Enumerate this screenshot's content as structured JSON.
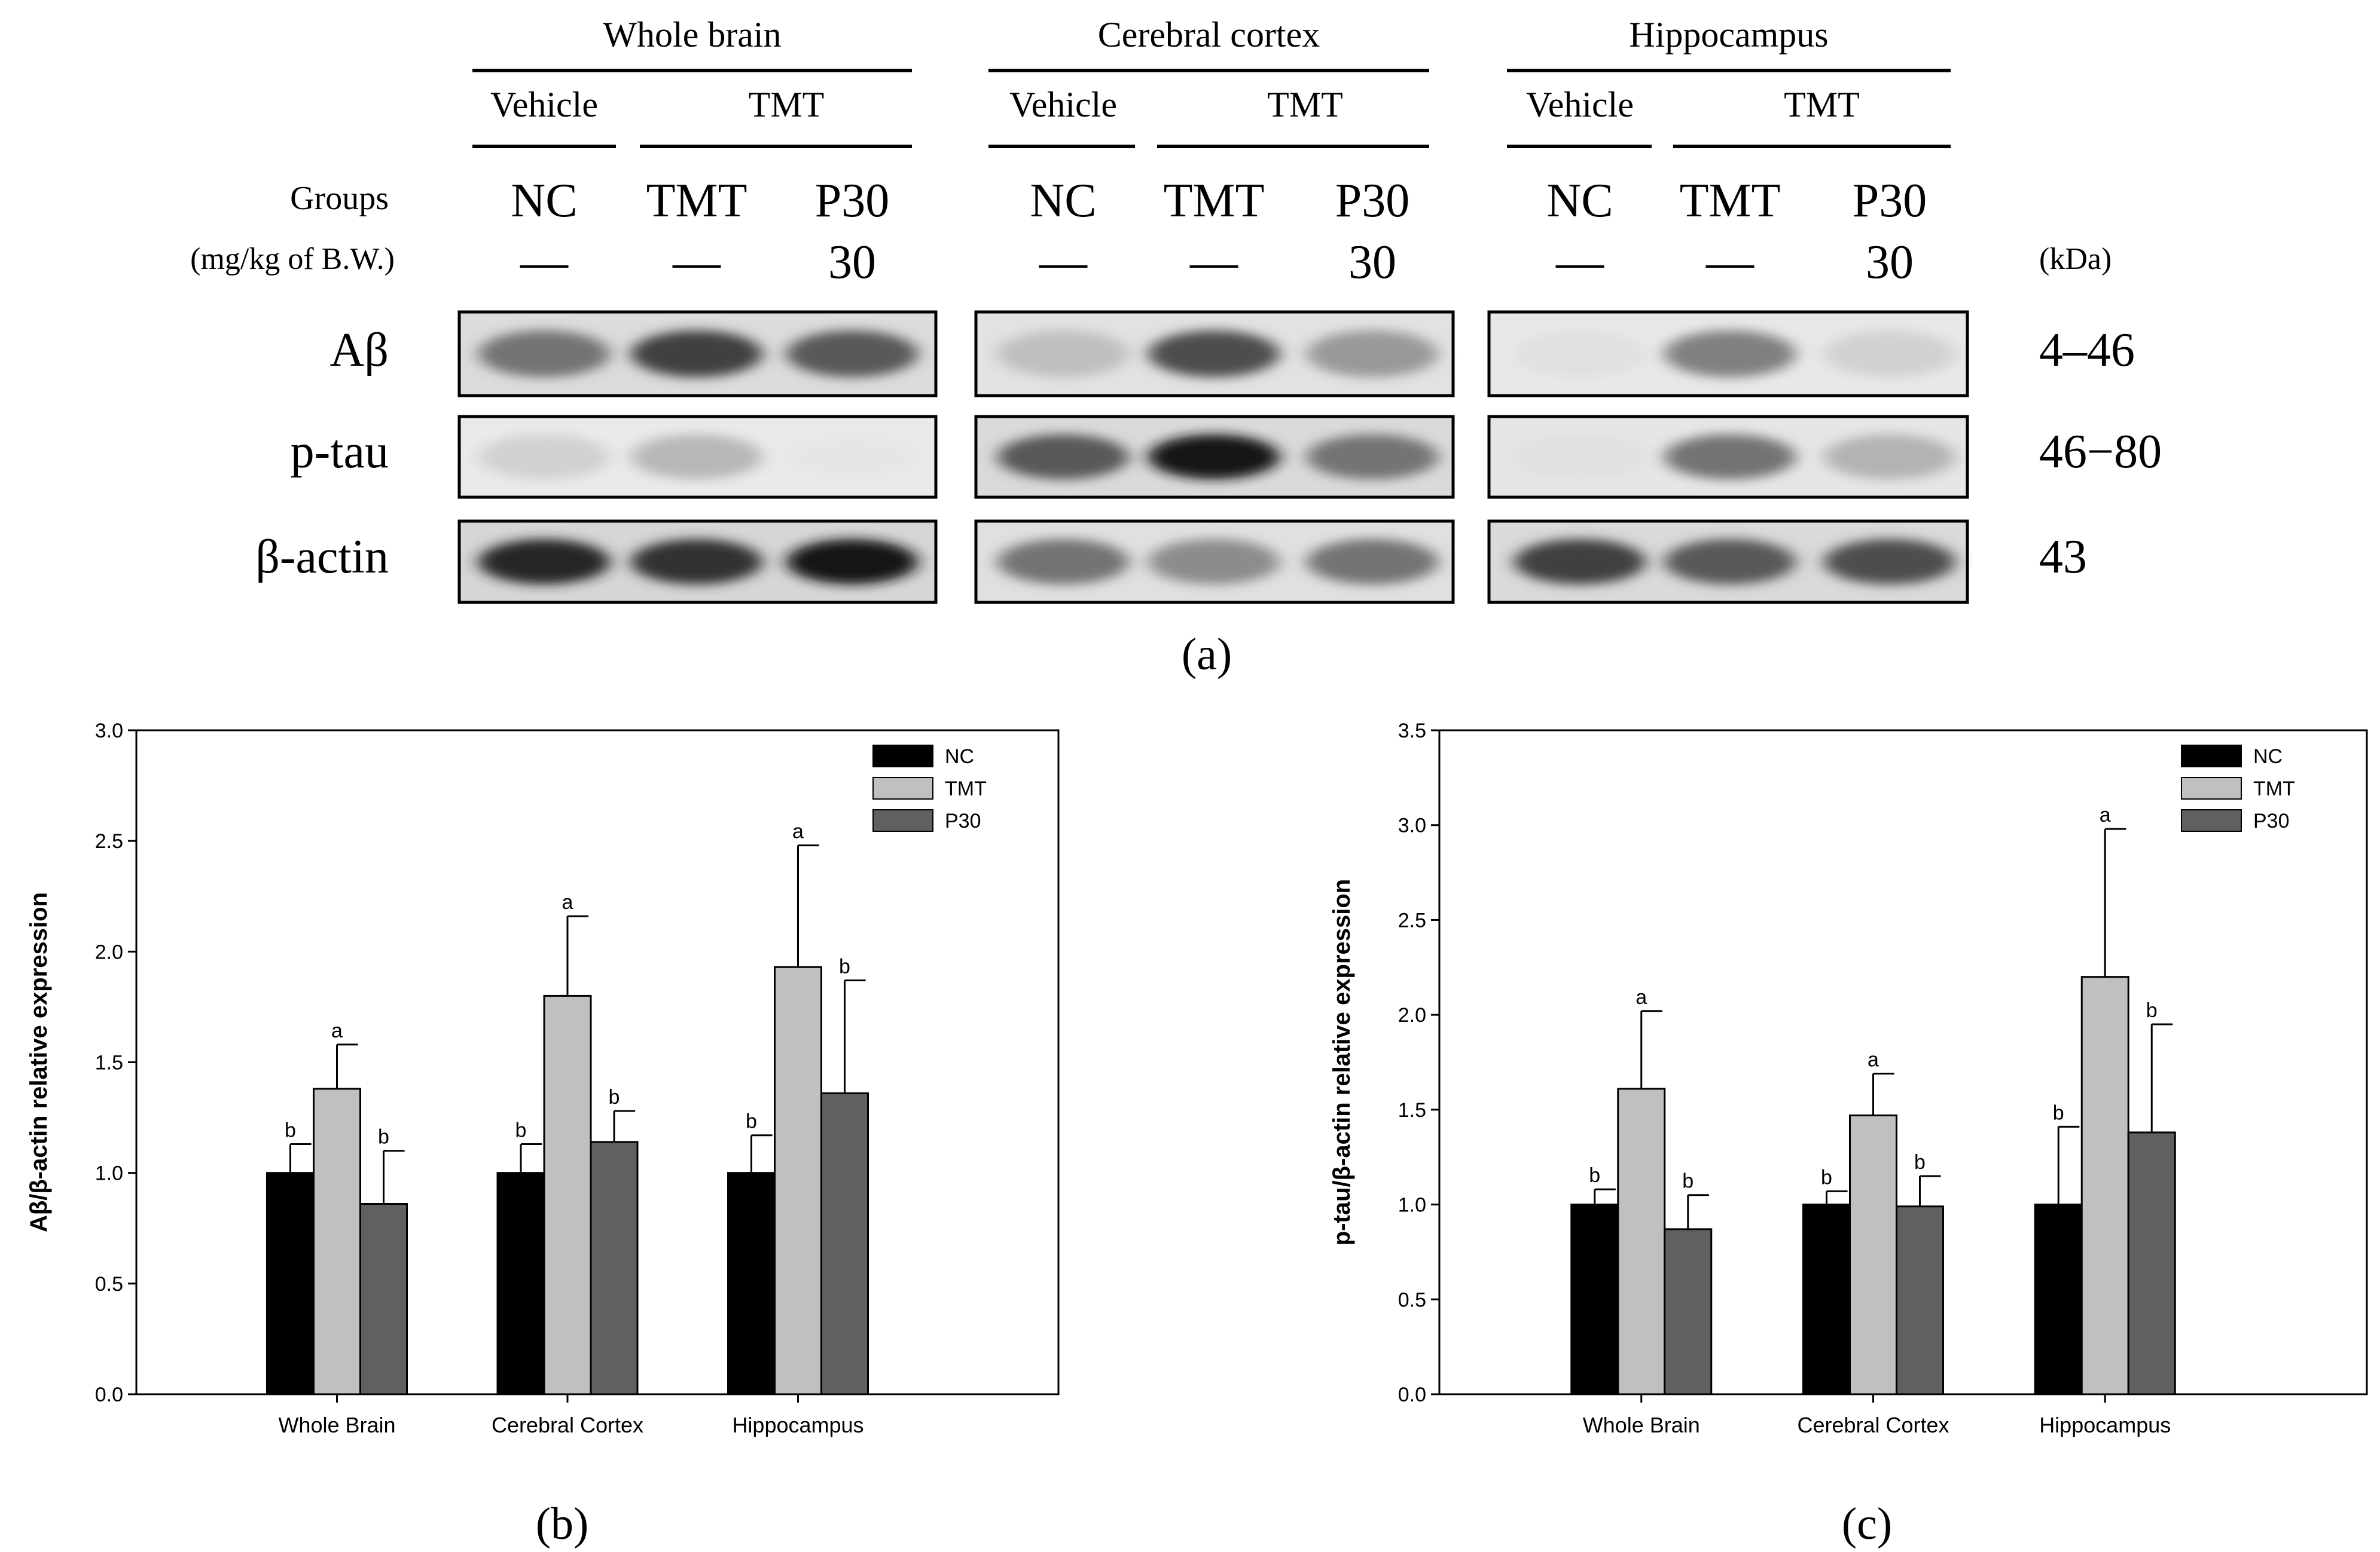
{
  "panel_a": {
    "tissues": [
      {
        "name": "Whole brain",
        "vehicle": "Vehicle",
        "treatment": "TMT",
        "lanes": [
          "NC",
          "TMT",
          "P30"
        ],
        "doses": [
          "—",
          "—",
          "30"
        ]
      },
      {
        "name": "Cerebral cortex",
        "vehicle": "Vehicle",
        "treatment": "TMT",
        "lanes": [
          "NC",
          "TMT",
          "P30"
        ],
        "doses": [
          "—",
          "—",
          "30"
        ]
      },
      {
        "name": "Hippocampus",
        "vehicle": "Vehicle",
        "treatment": "TMT",
        "lanes": [
          "NC",
          "TMT",
          "P30"
        ],
        "doses": [
          "—",
          "—",
          "30"
        ]
      }
    ],
    "groups_label": "Groups",
    "dose_label": "(mg/kg of B.W.)",
    "kda_label": "(kDa)",
    "proteins": [
      {
        "name": "Aβ",
        "kda": "4–46",
        "intensity": [
          [
            0.55,
            0.75,
            0.65
          ],
          [
            0.25,
            0.7,
            0.4
          ],
          [
            0.12,
            0.5,
            0.18
          ]
        ]
      },
      {
        "name": "p-tau",
        "kda": "46−80",
        "intensity": [
          [
            0.18,
            0.28,
            0.1
          ],
          [
            0.65,
            0.9,
            0.55
          ],
          [
            0.12,
            0.55,
            0.3
          ]
        ]
      },
      {
        "name": "β-actin",
        "kda": "43",
        "intensity": [
          [
            0.85,
            0.8,
            0.9
          ],
          [
            0.55,
            0.45,
            0.55
          ],
          [
            0.75,
            0.65,
            0.7
          ]
        ]
      }
    ],
    "caption_letter": "a"
  },
  "chart_data": [
    {
      "type": "bar",
      "panel": "b",
      "caption_letter": "b",
      "title": "",
      "xlabel": "",
      "ylabel": "Aβ/β-actin relative expression",
      "ylim": [
        0,
        3.0
      ],
      "yticks": [
        "0.0",
        "0.5",
        "1.0",
        "1.5",
        "2.0",
        "2.5",
        "3.0"
      ],
      "categories": [
        "Whole Brain",
        "Cerebral Cortex",
        "Hippocampus"
      ],
      "series": [
        {
          "name": "NC",
          "color": "#000000",
          "values": [
            1.0,
            1.0,
            1.0
          ],
          "errors": [
            0.13,
            0.13,
            0.17
          ],
          "letters": [
            "b",
            "b",
            "b"
          ]
        },
        {
          "name": "TMT",
          "color": "#c0c0c0",
          "values": [
            1.38,
            1.8,
            1.93
          ],
          "errors": [
            0.2,
            0.36,
            0.55
          ],
          "letters": [
            "a",
            "a",
            "a"
          ]
        },
        {
          "name": "P30",
          "color": "#606060",
          "values": [
            0.86,
            1.14,
            1.36
          ],
          "errors": [
            0.24,
            0.14,
            0.51
          ],
          "letters": [
            "b",
            "b",
            "b"
          ]
        }
      ],
      "legend": "top-right"
    },
    {
      "type": "bar",
      "panel": "c",
      "caption_letter": "c",
      "title": "",
      "xlabel": "",
      "ylabel": "p-tau/β-actin relative expression",
      "ylim": [
        0,
        3.5
      ],
      "yticks": [
        "0.0",
        "0.5",
        "1.0",
        "1.5",
        "2.0",
        "2.5",
        "3.0",
        "3.5"
      ],
      "categories": [
        "Whole Brain",
        "Cerebral Cortex",
        "Hippocampus"
      ],
      "series": [
        {
          "name": "NC",
          "color": "#000000",
          "values": [
            1.0,
            1.0,
            1.0
          ],
          "errors": [
            0.08,
            0.07,
            0.41
          ],
          "letters": [
            "b",
            "b",
            "b"
          ]
        },
        {
          "name": "TMT",
          "color": "#c0c0c0",
          "values": [
            1.61,
            1.47,
            2.2
          ],
          "errors": [
            0.41,
            0.22,
            0.78
          ],
          "letters": [
            "a",
            "a",
            "a"
          ]
        },
        {
          "name": "P30",
          "color": "#606060",
          "values": [
            0.87,
            0.99,
            1.38
          ],
          "errors": [
            0.18,
            0.16,
            0.57
          ],
          "letters": [
            "b",
            "b",
            "b"
          ]
        }
      ],
      "legend": "top-right"
    }
  ]
}
